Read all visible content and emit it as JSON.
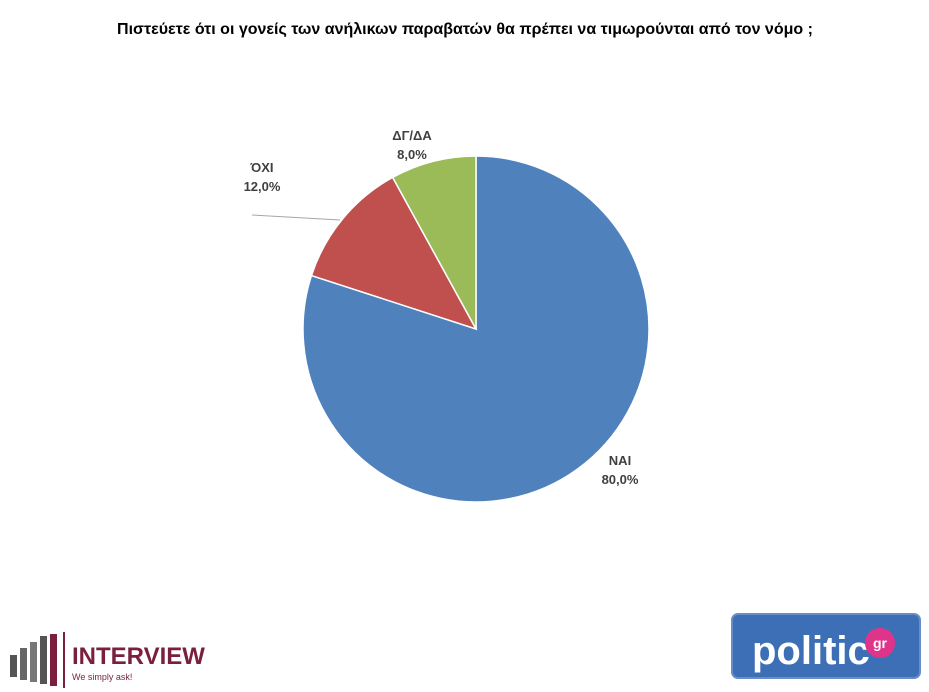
{
  "chart_data": {
    "type": "pie",
    "title": "Πιστεύετε ότι οι γονείς των ανήλικων παραβατών θα πρέπει να τιμωρούνται από τον νόμο ;",
    "categories": [
      "ΝΑΙ",
      "ΌΧΙ",
      "ΔΓ/ΔΑ"
    ],
    "values": [
      80,
      12,
      8
    ],
    "value_labels": [
      "80,0%",
      "12,0%",
      "8,0%"
    ],
    "colors": [
      "#4f81bd",
      "#c0504d",
      "#9bbb59"
    ]
  },
  "logos": {
    "interview": "INTERVIEW",
    "interview_tagline": "We simply ask!",
    "politic": "politic",
    "politic_suffix": "gr"
  }
}
